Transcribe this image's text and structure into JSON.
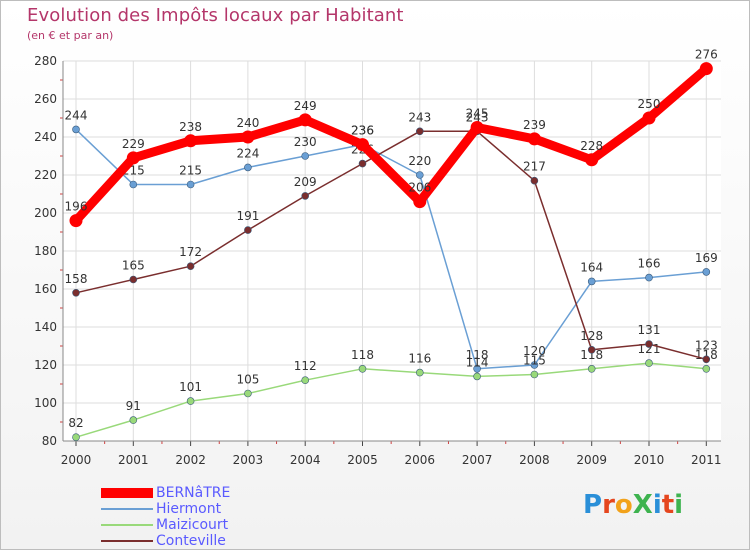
{
  "title": "Evolution des Impôts locaux par Habitant",
  "subtitle": "(en € et par an)",
  "brand": "ProXiti",
  "chart_data": {
    "type": "line",
    "title": "Evolution des Impôts locaux par Habitant",
    "subtitle": "(en € et par an)",
    "xlabel": "",
    "ylabel": "",
    "x": [
      "2000",
      "2001",
      "2002",
      "2003",
      "2004",
      "2005",
      "2006",
      "2007",
      "2008",
      "2009",
      "2010",
      "2011"
    ],
    "ylim": [
      80,
      280
    ],
    "yticks": [
      "80",
      "100",
      "120",
      "140",
      "160",
      "180",
      "200",
      "220",
      "240",
      "260",
      "280"
    ],
    "grid": true,
    "legend_position": "bottom-left",
    "series": [
      {
        "name": "Hiermont",
        "color": "#6a9fd4",
        "values": [
          244,
          215,
          215,
          224,
          230,
          236,
          220,
          118,
          120,
          164,
          166,
          169
        ],
        "labels": [
          "244",
          "215",
          "215",
          "224",
          "230",
          "236",
          "220",
          "118",
          "120",
          "164",
          "166",
          "169"
        ]
      },
      {
        "name": "Maizicourt",
        "color": "#99d97a",
        "values": [
          82,
          91,
          101,
          105,
          112,
          118,
          116,
          114,
          115,
          118,
          121,
          118
        ],
        "labels": [
          "82",
          "91",
          "101",
          "105",
          "112",
          "118",
          "116",
          "114",
          "115",
          "118",
          "121",
          "118"
        ]
      },
      {
        "name": "Conteville",
        "color": "#7a2e2e",
        "values": [
          158,
          165,
          172,
          191,
          209,
          226,
          243,
          243,
          217,
          128,
          131,
          123
        ],
        "labels": [
          "158",
          "165",
          "172",
          "191",
          "209",
          "226",
          "243",
          "243",
          "217",
          "128",
          "131",
          "123"
        ]
      },
      {
        "name": "BERNâTRE",
        "color": "#ff0000",
        "values": [
          196,
          229,
          238,
          240,
          249,
          236,
          206,
          245,
          239,
          228,
          250,
          276
        ],
        "labels": [
          "196",
          "229",
          "238",
          "240",
          "249",
          "236",
          "206",
          "245",
          "239",
          "228",
          "250",
          "276"
        ]
      }
    ],
    "legend": [
      "BERNâTRE",
      "Hiermont",
      "Maizicourt",
      "Conteville"
    ]
  }
}
